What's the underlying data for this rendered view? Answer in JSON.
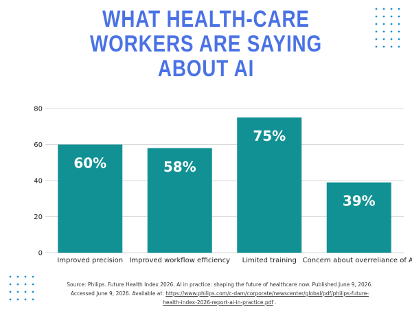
{
  "title": "What health-care workers are saying about AI",
  "chart_data": {
    "type": "bar",
    "categories": [
      "Improved precision",
      "Improved workflow efficiency",
      "Limited training",
      "Concern about overreliance of AI"
    ],
    "values": [
      60,
      58,
      75,
      39
    ],
    "data_labels": [
      "60%",
      "58%",
      "75%",
      "39%"
    ],
    "ylim": [
      0,
      80
    ],
    "yticks": [
      0,
      20,
      40,
      60,
      80
    ],
    "grid": true,
    "bar_color": "#119193"
  },
  "source": {
    "text": "Source: Philips. Future Health Index 2026. AI in practice: shaping the future of healthcare now. Published June 9, 2026. Accessed June 9, 2026. Available at:",
    "link": "https://www.philips.com/c-dam/corporate/newscenter/global/pdf/philips-future-health-index-2026-report-ai-in-practice.pdf",
    "end": "."
  },
  "colors": {
    "title": "#4a72e4",
    "bar": "#119193",
    "dots": "#1f8fd0"
  }
}
